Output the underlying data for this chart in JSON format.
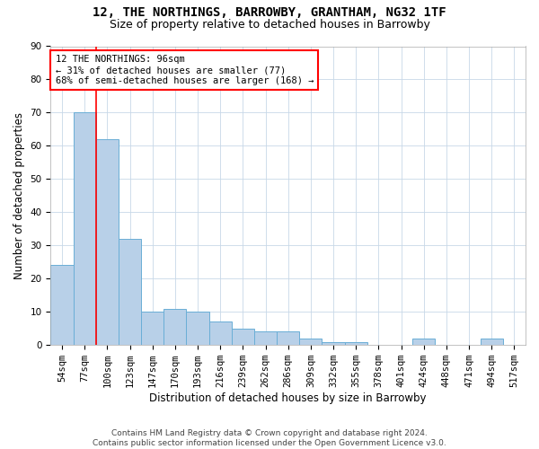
{
  "title": "12, THE NORTHINGS, BARROWBY, GRANTHAM, NG32 1TF",
  "subtitle": "Size of property relative to detached houses in Barrowby",
  "xlabel": "Distribution of detached houses by size in Barrowby",
  "ylabel": "Number of detached properties",
  "categories": [
    "54sqm",
    "77sqm",
    "100sqm",
    "123sqm",
    "147sqm",
    "170sqm",
    "193sqm",
    "216sqm",
    "239sqm",
    "262sqm",
    "286sqm",
    "309sqm",
    "332sqm",
    "355sqm",
    "378sqm",
    "401sqm",
    "424sqm",
    "448sqm",
    "471sqm",
    "494sqm",
    "517sqm"
  ],
  "values": [
    24,
    70,
    62,
    32,
    10,
    11,
    10,
    7,
    5,
    4,
    4,
    2,
    1,
    1,
    0,
    0,
    2,
    0,
    0,
    2,
    0
  ],
  "bar_color": "#b8d0e8",
  "bar_edge_color": "#6aaed6",
  "annotation_box_text": "12 THE NORTHINGS: 96sqm\n← 31% of detached houses are smaller (77)\n68% of semi-detached houses are larger (168) →",
  "annotation_box_color": "white",
  "annotation_box_edge_color": "red",
  "vline_x_index": 1.5,
  "vline_color": "red",
  "ylim": [
    0,
    90
  ],
  "yticks": [
    0,
    10,
    20,
    30,
    40,
    50,
    60,
    70,
    80,
    90
  ],
  "footer": "Contains HM Land Registry data © Crown copyright and database right 2024.\nContains public sector information licensed under the Open Government Licence v3.0.",
  "bg_color": "#ffffff",
  "plot_bg_color": "#ffffff",
  "title_fontsize": 10,
  "subtitle_fontsize": 9,
  "xlabel_fontsize": 8.5,
  "ylabel_fontsize": 8.5,
  "tick_fontsize": 7.5,
  "footer_fontsize": 6.5,
  "annotation_fontsize": 7.5
}
